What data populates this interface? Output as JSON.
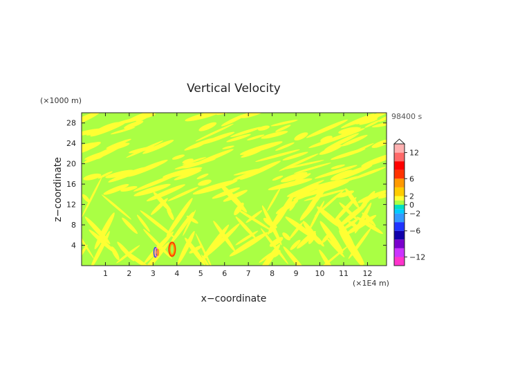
{
  "chart_data": {
    "type": "heatmap",
    "title": "Vertical Velocity",
    "xlabel": "x−coordinate",
    "ylabel": "z−coordinate",
    "x_unit": "(×1E4 m)",
    "y_unit": "(×1000 m)",
    "time_label": "98400 s",
    "xlim": [
      0,
      12.8
    ],
    "ylim": [
      0,
      30
    ],
    "x_ticks": [
      "1",
      "2",
      "3",
      "4",
      "5",
      "6",
      "7",
      "8",
      "9",
      "10",
      "11",
      "12"
    ],
    "y_ticks": [
      "4",
      "8",
      "12",
      "16",
      "20",
      "24",
      "28"
    ],
    "colorbar": {
      "tick_labels": [
        "12",
        "6",
        "2",
        "0",
        "−2",
        "−6",
        "−12"
      ],
      "levels": [
        -14,
        -12,
        -10,
        -8,
        -6,
        -4,
        -2,
        -1,
        0,
        1,
        2,
        4,
        6,
        8,
        10,
        12,
        14
      ],
      "colors": [
        "#ff33cc",
        "#cc33ff",
        "#7a00cc",
        "#1100aa",
        "#1f33ff",
        "#3399ff",
        "#00ccff",
        "#00e0c0",
        "#aaff44",
        "#ffff33",
        "#ffcc00",
        "#ff9900",
        "#ff3300",
        "#ff0000",
        "#ff6a6a",
        "#ffb0b0"
      ]
    },
    "background_values": {
      "dominant_ranges": [
        "0 to 1",
        "1 to 2"
      ],
      "dominant_colors": [
        "#aaff44",
        "#ffff33"
      ]
    },
    "features": [
      {
        "x": 3.15,
        "z": 2.6,
        "description": "narrow negative velocity cell",
        "colors": [
          "#1f33ff",
          "#ff66cc",
          "#ff9900"
        ]
      },
      {
        "x": 3.8,
        "z": 3.2,
        "description": "positive velocity cell",
        "colors": [
          "#ff3300",
          "#ff9900"
        ]
      }
    ]
  }
}
